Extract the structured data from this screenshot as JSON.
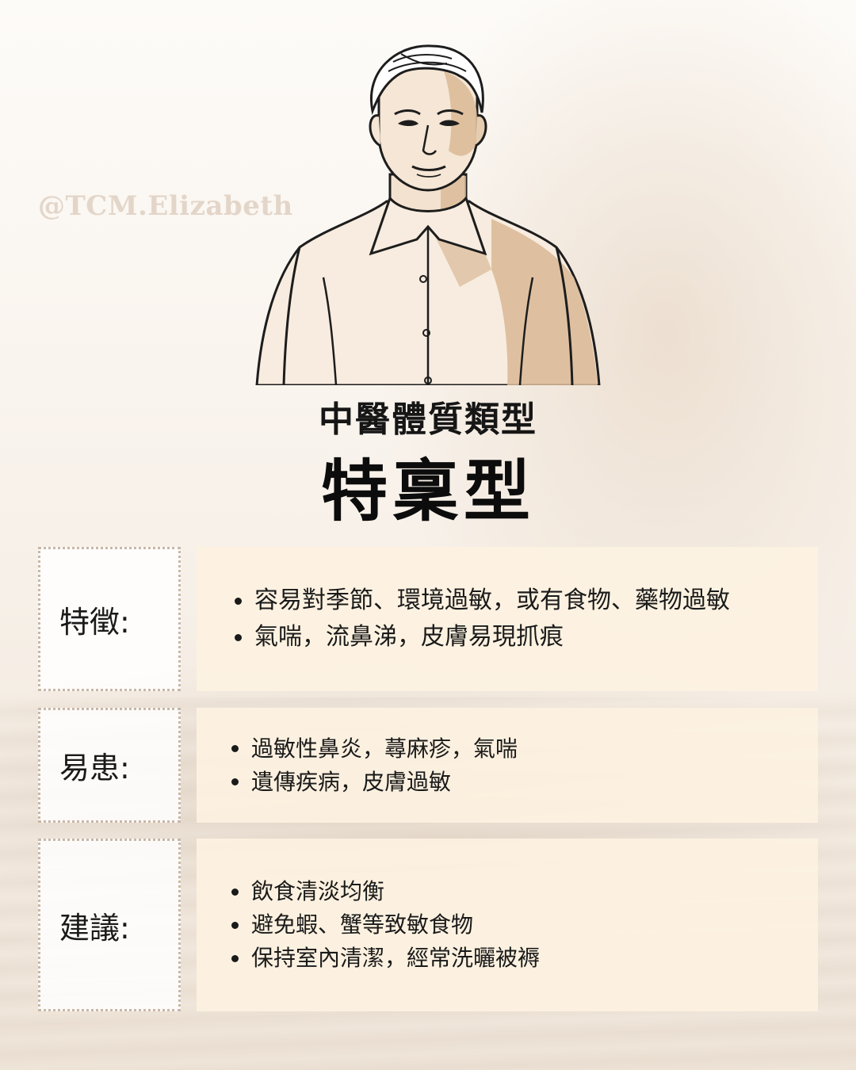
{
  "watermark": "@TCM.Elizabeth",
  "header": {
    "subtitle": "中醫體質類型",
    "title": "特稟型"
  },
  "sections": [
    {
      "label": "特徵:",
      "items": [
        "容易對季節、環境過敏，或有食物、藥物過敏",
        "氣喘，流鼻涕，皮膚易現抓痕"
      ]
    },
    {
      "label": "易患:",
      "items": [
        "過敏性鼻炎，蕁麻疹，氣喘",
        "遺傳疾病，皮膚過敏"
      ]
    },
    {
      "label": "建議:",
      "items": [
        "飲食清淡均衡",
        "避免蝦、蟹等致敏食物",
        "保持室內清潔，經常洗曬被褥"
      ]
    }
  ],
  "colors": {
    "background": "#faf6f1",
    "content_fill": "#fdf2e1",
    "label_border": "#c9b7a6",
    "watermark": "#d6c5b2",
    "portrait_shading": "#d9b995"
  },
  "icons": {
    "portrait": "man-portrait-illustration"
  }
}
